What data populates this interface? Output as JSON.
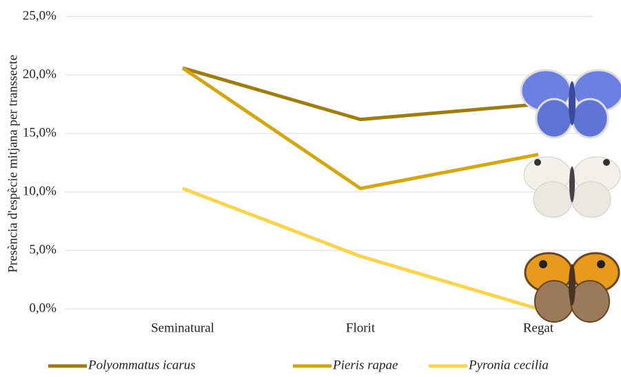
{
  "chart_data": {
    "type": "line",
    "y_label": "Presència d'espècie mitjana per transsecte",
    "categories": [
      "Seminatural",
      "Florit",
      "Regat"
    ],
    "series": [
      {
        "name": "Polyommatus icarus",
        "color": "#a07c0c",
        "values": [
          20.6,
          16.2,
          17.5
        ]
      },
      {
        "name": "Pieris rapae",
        "color": "#d6a70c",
        "values": [
          20.6,
          10.3,
          13.2
        ]
      },
      {
        "name": "Pyronia cecilia",
        "color": "#fcd44a",
        "values": [
          10.3,
          4.5,
          0.0
        ]
      }
    ],
    "ylim": [
      0,
      25
    ],
    "yticks": [
      {
        "value": 0,
        "label": "0,0%"
      },
      {
        "value": 5,
        "label": "5,0%"
      },
      {
        "value": 10,
        "label": "10,0%"
      },
      {
        "value": 15,
        "label": "15,0%"
      },
      {
        "value": 20,
        "label": "20,0%"
      },
      {
        "value": 25,
        "label": "25,0%"
      }
    ],
    "grid": true
  }
}
